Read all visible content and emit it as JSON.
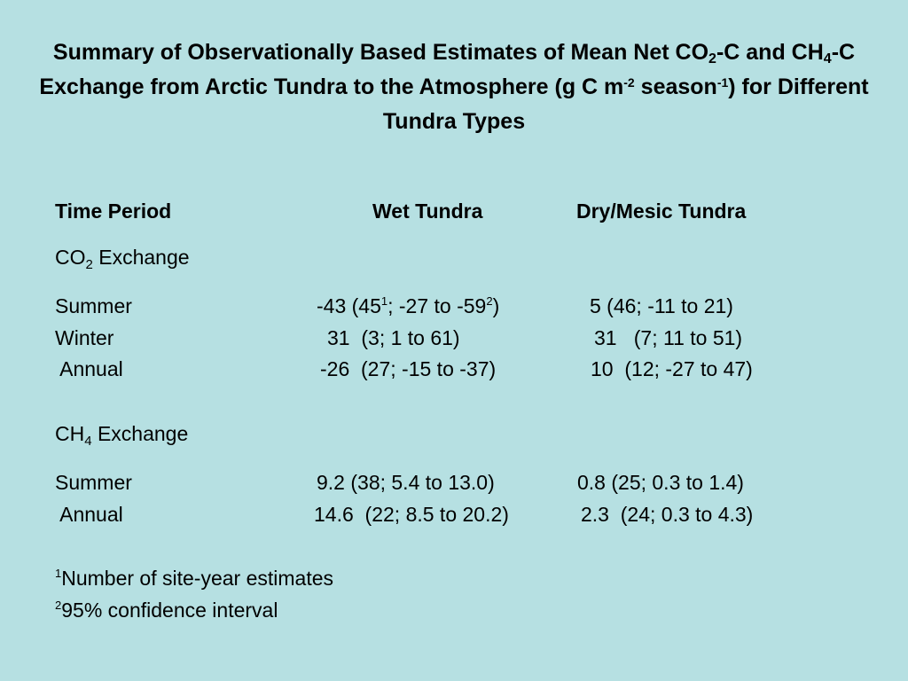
{
  "title": {
    "part1": "Summary of Observationally Based Estimates of Mean Net CO",
    "sub1": "2",
    "part2": "-C and CH",
    "sub2": "4",
    "part3": "-C Exchange from Arctic Tundra to the Atmosphere (g C m",
    "sup1": "-2",
    "part4": " season",
    "sup2": "-1",
    "part5": ") for Different Tundra Types"
  },
  "header": {
    "time_period": "Time Period",
    "wet": "Wet Tundra",
    "dry": "Dry/Mesic Tundra"
  },
  "co2": {
    "label_pre": "CO",
    "label_sub": "2",
    "label_post": " Exchange",
    "rows": [
      {
        "period": "Summer",
        "wet_pre": "-43 (45",
        "wet_sup1": "1",
        "wet_mid": "; -27 to -59",
        "wet_sup2": "2",
        "wet_post": ")",
        "dry": "5 (46; -11 to 21)"
      },
      {
        "period": "Winter",
        "wet": "31  (3; 1 to 61)",
        "dry": "31   (7; 11 to 51)"
      },
      {
        "period": " Annual",
        "wet": "-26  (27; -15 to -37)",
        "dry": "10  (12; -27 to 47)"
      }
    ]
  },
  "ch4": {
    "label_pre": "CH",
    "label_sub": "4",
    "label_post": " Exchange",
    "rows": [
      {
        "period": "Summer",
        "wet": "9.2 (38; 5.4 to 13.0)",
        "dry": "0.8 (25; 0.3 to 1.4)"
      },
      {
        "period": " Annual",
        "wet": "14.6  (22; 8.5 to 20.2)",
        "dry": "2.3  (24; 0.3 to 4.3)"
      }
    ]
  },
  "footnotes": [
    {
      "mark": "1",
      "text": "Number of site-year estimates"
    },
    {
      "mark": "2",
      "text": "95% confidence interval"
    }
  ]
}
